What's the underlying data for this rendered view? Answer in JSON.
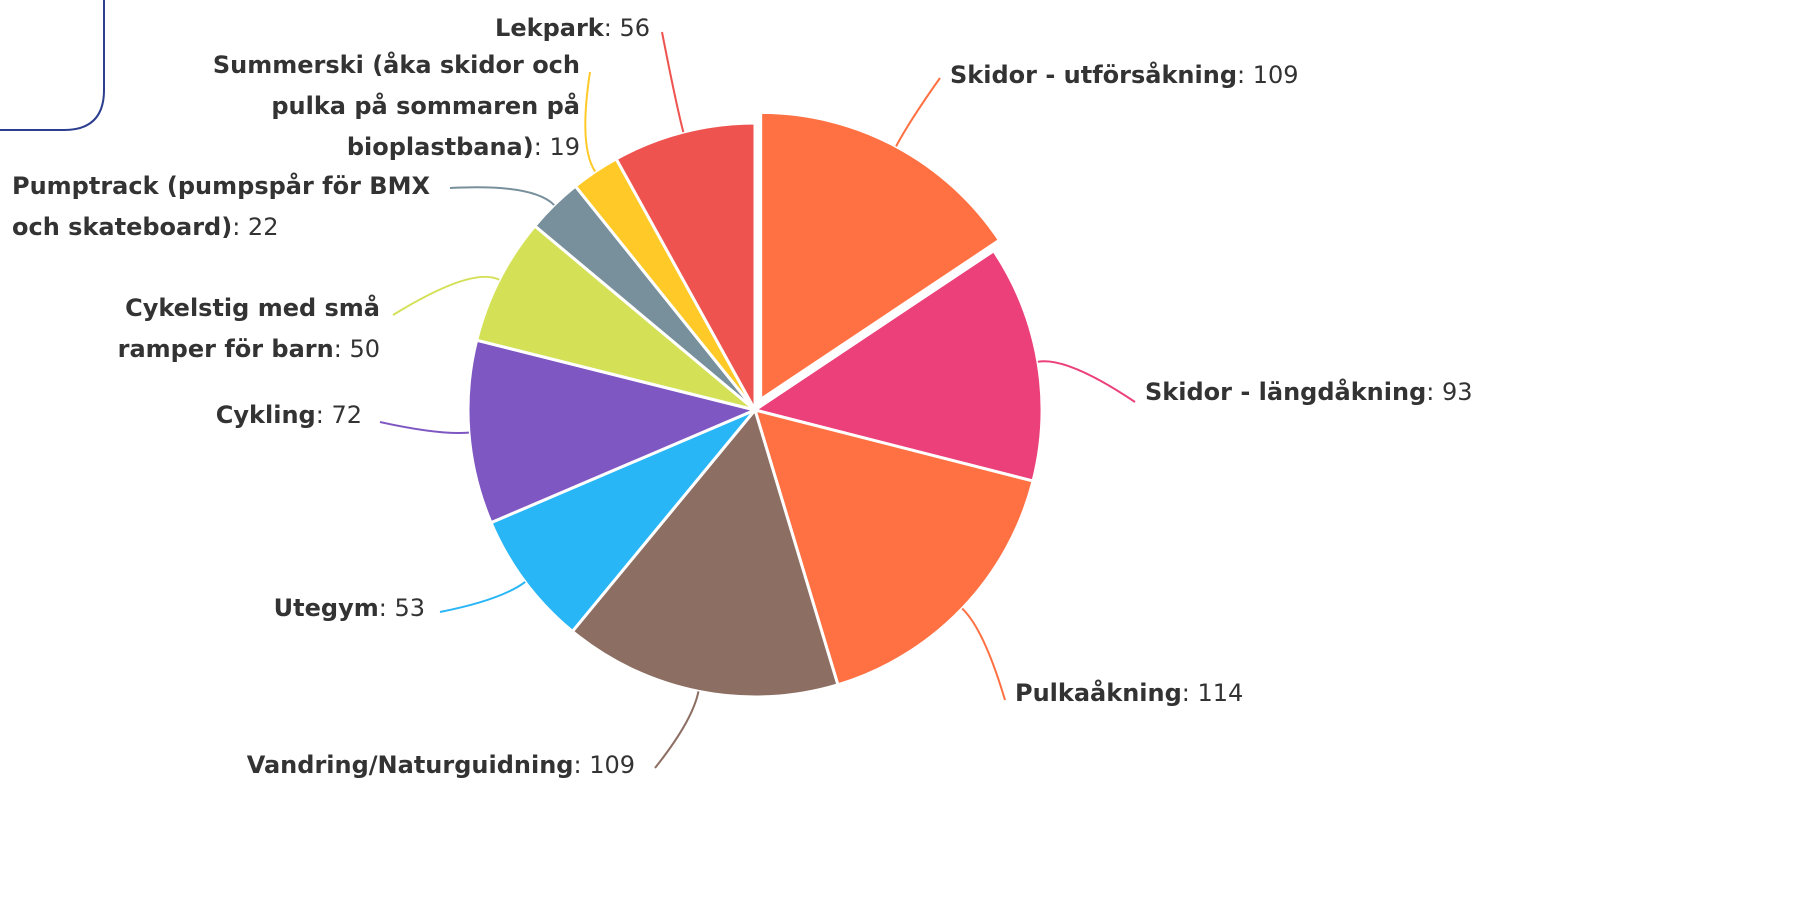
{
  "chart_data": {
    "type": "pie",
    "categories": [
      "Skidor - utförsåkning",
      "Skidor - längdåkning",
      "Pulkaåkning",
      "Vandring/Naturguidning",
      "Utegym",
      "Cykling",
      "Cykelstig med små ramper för barn",
      "Pumptrack (pumpspår för BMX och skateboard)",
      "Summerski (åka skidor och pulka på sommaren på bioplastbana)",
      "Lekpark"
    ],
    "values": [
      109,
      93,
      114,
      109,
      53,
      72,
      50,
      22,
      19,
      56
    ],
    "colors": [
      "#ff7043",
      "#ec407a",
      "#ff7043",
      "#8d6e63",
      "#29b6f6",
      "#7e57c2",
      "#d4e157",
      "#78909c",
      "#ffca28",
      "#ef5350"
    ],
    "exploded": [
      0
    ]
  }
}
